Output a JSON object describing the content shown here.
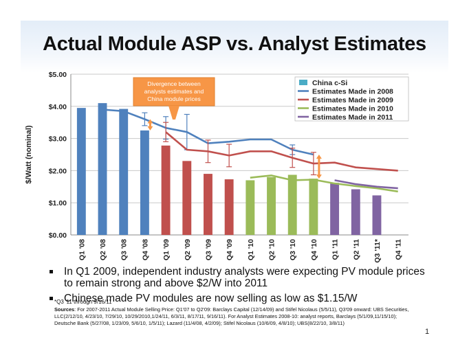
{
  "slide": {
    "title": "Actual Module ASP vs. Analyst Estimates",
    "bullets": [
      "In Q1 2009, independent industry analysts were expecting PV module prices to remain strong and above $2/W into 2011",
      "Chinese made PV modules are now selling as low as $1.15/W"
    ],
    "footnote": "*Q3 '11 through 9/16/11",
    "sources_label": "Sources",
    "sources_text": ": For 2007-2011 Actual Module Selling Price: Q1'07 to Q2'09: Barclays Capital (12/14/09) and Stifel Nicolaus (5/5/11), Q3'09 onward: UBS Securities, LLC(2/12/10, 4/23/10, 7/29/10, 10/29/2010,1/24/11, 6/3/11, 8/17/11, 9/16/11). For Analyst Estimates 2008-10: analyst reports, Barclays (5/1/09,11/15/10); Deutsche Bank (5/27/08, 1/23/09, 5/6/10, 1/5/11); Lazard (11/4/08, 4/2/09); Stifel Nicolaus (10/6/09, 4/8/10); UBS(8/22/10, 3/8/11)",
    "page_number": "1"
  },
  "colors": {
    "bar_2008": "#4f81bd",
    "bar_2009": "#c0504d",
    "bar_2010": "#9bbb59",
    "bar_2011": "#8064a2",
    "legend_china": "#4bacc6",
    "est_2008": "#4f81bd",
    "est_2009": "#c0504d",
    "est_2010": "#9bbb59",
    "est_2011": "#8064a2",
    "callout_fill": "#f79646",
    "arrow": "#f79646"
  },
  "chart_data": {
    "type": "bar",
    "ylabel": "$/Watt (nominal)",
    "xlabel": "",
    "ylim": [
      0,
      5
    ],
    "yticks": [
      "$0.00",
      "$1.00",
      "$2.00",
      "$3.00",
      "$4.00",
      "$5.00"
    ],
    "grid": true,
    "legend_position": "top-right",
    "categories": [
      "Q1 '08",
      "Q2 '08",
      "Q3 '08",
      "Q4 '08",
      "Q1 '09",
      "Q2 '09",
      "Q3 '09",
      "Q4 '09",
      "Q1 '10",
      "Q2 '10",
      "Q3 '10",
      "Q4 '10",
      "Q1 '11",
      "Q2 '11",
      "Q3 '11*",
      "Q4 '11"
    ],
    "bars": {
      "name": "China c-Si",
      "values": [
        3.95,
        4.1,
        3.92,
        3.25,
        2.78,
        2.3,
        1.9,
        1.73,
        1.7,
        1.8,
        1.87,
        1.75,
        1.62,
        1.42,
        1.23,
        null
      ],
      "year_colors": [
        "bar_2008",
        "bar_2008",
        "bar_2008",
        "bar_2008",
        "bar_2009",
        "bar_2009",
        "bar_2009",
        "bar_2009",
        "bar_2010",
        "bar_2010",
        "bar_2010",
        "bar_2010",
        "bar_2011",
        "bar_2011",
        "bar_2011",
        "bar_2011"
      ]
    },
    "series": [
      {
        "name": "Estimates Made in 2008",
        "color_key": "est_2008",
        "values": [
          null,
          3.9,
          3.85,
          3.6,
          3.33,
          3.2,
          2.85,
          2.9,
          2.97,
          2.97,
          2.65,
          2.5,
          null,
          null,
          null,
          null
        ],
        "errors": [
          null,
          null,
          null,
          0.2,
          0.35,
          0.55,
          null,
          null,
          null,
          null,
          0.15,
          null,
          null,
          null,
          null,
          null
        ]
      },
      {
        "name": "Estimates Made in 2009",
        "color_key": "est_2009",
        "values": [
          null,
          null,
          null,
          null,
          3.2,
          2.65,
          2.6,
          2.47,
          2.6,
          2.6,
          2.4,
          2.22,
          2.25,
          2.1,
          2.05,
          2.0
        ],
        "errors": [
          null,
          null,
          null,
          null,
          0.3,
          null,
          0.35,
          0.35,
          null,
          null,
          0.3,
          0.35,
          null,
          null,
          null,
          null
        ]
      },
      {
        "name": "Estimates Made in 2010",
        "color_key": "est_2010",
        "values": [
          null,
          null,
          null,
          null,
          null,
          null,
          null,
          null,
          1.78,
          1.85,
          1.7,
          1.72,
          1.6,
          1.52,
          1.45,
          1.35
        ],
        "errors": [
          null,
          null,
          null,
          null,
          null,
          null,
          null,
          null,
          null,
          null,
          null,
          null,
          null,
          null,
          null,
          null
        ]
      },
      {
        "name": "Estimates Made in 2011",
        "color_key": "est_2011",
        "values": [
          null,
          null,
          null,
          null,
          null,
          null,
          null,
          null,
          null,
          null,
          null,
          null,
          1.7,
          1.58,
          1.5,
          1.45
        ],
        "errors": [
          null,
          null,
          null,
          null,
          null,
          null,
          null,
          null,
          null,
          null,
          null,
          null,
          null,
          null,
          null,
          null
        ]
      }
    ],
    "annotation": "Divergence between analysts estimates and China module prices",
    "divergence_arrows": [
      {
        "category": "Q4 '08",
        "from": 3.25,
        "to": 3.6
      },
      {
        "category": "Q4 '10",
        "from": 1.75,
        "to": 2.5
      }
    ]
  }
}
